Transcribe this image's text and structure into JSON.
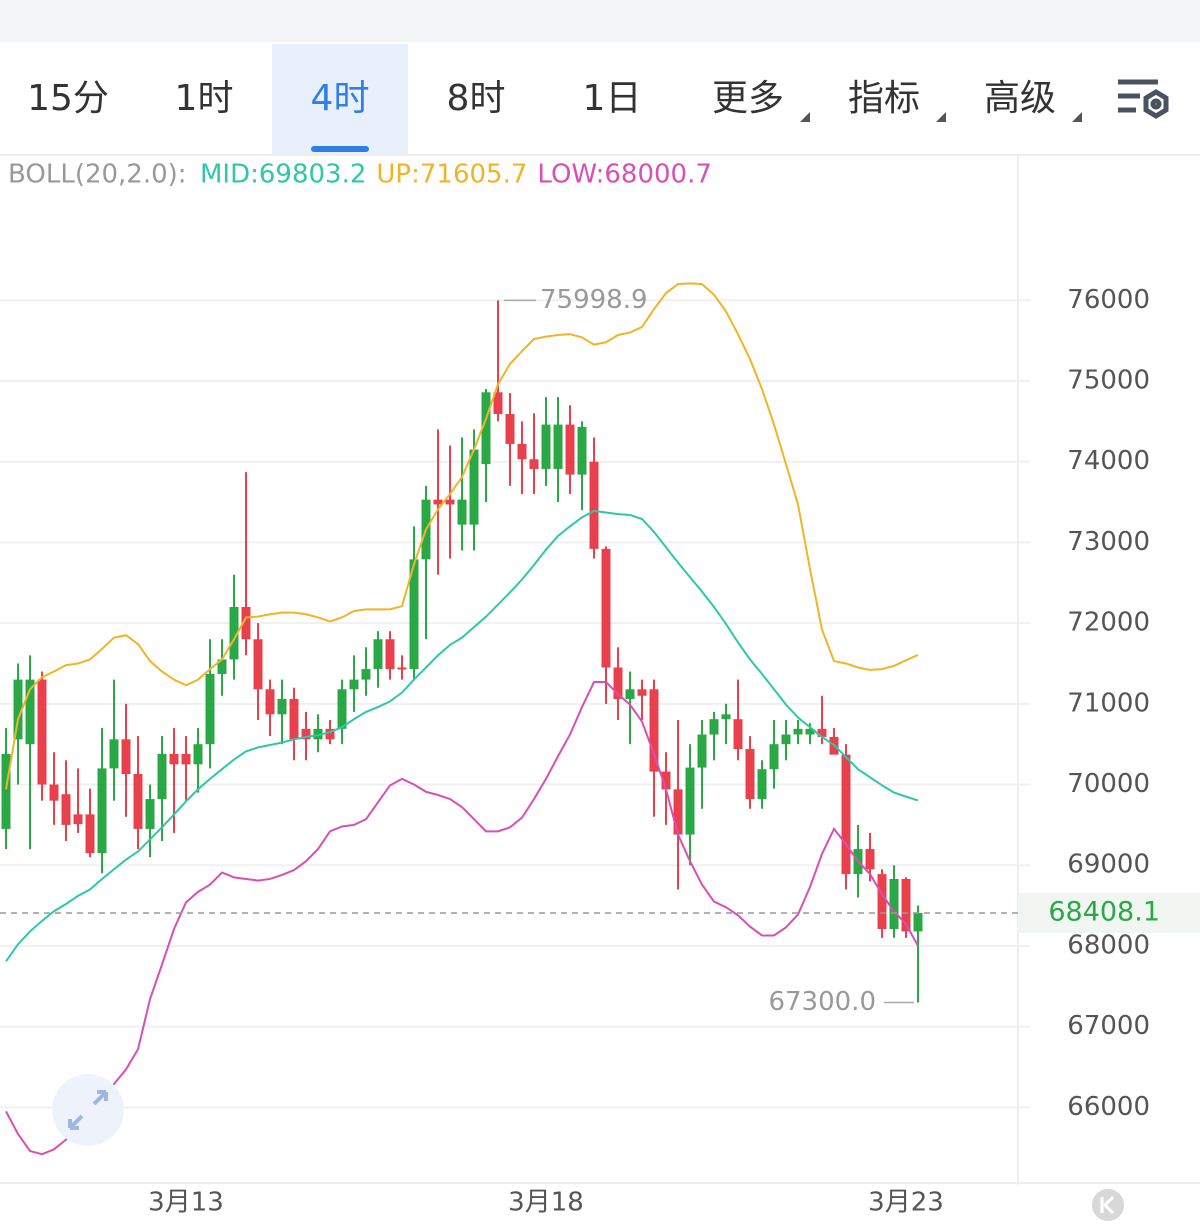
{
  "tabs": [
    {
      "label": "15分"
    },
    {
      "label": "1时"
    },
    {
      "label": "4时"
    },
    {
      "label": "8时"
    },
    {
      "label": "1日"
    },
    {
      "label": "更多",
      "dropdown": true
    },
    {
      "label": "指标",
      "dropdown": true
    },
    {
      "label": "高级",
      "dropdown": true
    }
  ],
  "selected_tab": 2,
  "chart_data": {
    "type": "candlestick",
    "indicator": "BOLL(20,2.0):",
    "up_color": "#2aa845",
    "down_color": "#e8404c",
    "categories": [
      null,
      null,
      null,
      null,
      null,
      null,
      null,
      null,
      null,
      null,
      null,
      null,
      null,
      null,
      null,
      "3月13",
      null,
      null,
      null,
      null,
      null,
      null,
      null,
      null,
      null,
      null,
      null,
      null,
      null,
      null,
      null,
      null,
      null,
      null,
      null,
      null,
      null,
      null,
      null,
      null,
      null,
      null,
      null,
      null,
      null,
      "3月18",
      null,
      null,
      null,
      null,
      null,
      null,
      null,
      null,
      null,
      null,
      null,
      null,
      null,
      null,
      null,
      null,
      null,
      null,
      null,
      null,
      null,
      null,
      null,
      null,
      null,
      null,
      null,
      null,
      null,
      "3月23",
      null
    ],
    "open": [
      69450,
      70560,
      70500,
      71300,
      70000,
      69880,
      69630,
      69630,
      69150,
      70200,
      70560,
      70130,
      69450,
      69820,
      70380,
      70380,
      70250,
      70500,
      71370,
      71550,
      72200,
      71800,
      71180,
      70870,
      71060,
      70690,
      70560,
      70690,
      70690,
      71180,
      71300,
      71430,
      71800,
      71450,
      71430,
      72790,
      73530,
      73530,
      73220,
      73220,
      73970,
      74860,
      74590,
      74220,
      74030,
      73910,
      73910,
      74460,
      73840,
      74000,
      72920,
      71450,
      71060,
      71180,
      71180,
      70160,
      69940,
      69380,
      70210,
      70620,
      70810,
      70810,
      70440,
      69820,
      70190,
      70500,
      70620,
      70620,
      70690,
      70590,
      70370,
      68890,
      69200,
      68890,
      68210,
      68830,
      68180
    ],
    "high": [
      70700,
      71500,
      71600,
      71400,
      70400,
      70300,
      70200,
      69950,
      70700,
      71300,
      71000,
      70600,
      70000,
      70600,
      70700,
      70600,
      70700,
      71800,
      71800,
      72600,
      73870,
      72000,
      71300,
      71300,
      71200,
      70900,
      70870,
      70800,
      71300,
      71600,
      71700,
      71900,
      71900,
      71600,
      73200,
      73700,
      74400,
      74200,
      74300,
      74400,
      74900,
      75998.9,
      74850,
      74500,
      74600,
      74800,
      74800,
      74700,
      74500,
      74300,
      72950,
      71700,
      71400,
      71300,
      71300,
      70400,
      70800,
      70500,
      70800,
      70900,
      71000,
      71300,
      70600,
      70300,
      70800,
      70800,
      70800,
      70760,
      71100,
      70700,
      70500,
      69500,
      69400,
      68950,
      69000,
      68850,
      68500
    ],
    "low": [
      69200,
      70000,
      69200,
      69800,
      69500,
      69300,
      69400,
      69100,
      68900,
      69800,
      69600,
      69200,
      69100,
      69300,
      69400,
      69800,
      69900,
      70200,
      71100,
      71300,
      71600,
      70800,
      70600,
      70500,
      70300,
      70300,
      70400,
      70500,
      70500,
      70900,
      71100,
      71200,
      71300,
      71300,
      71300,
      71800,
      72600,
      72800,
      72900,
      72900,
      73500,
      74500,
      73700,
      73600,
      73600,
      73700,
      73500,
      73600,
      73400,
      72800,
      71000,
      70800,
      70500,
      70800,
      69600,
      69500,
      68700,
      69000,
      69700,
      70300,
      70500,
      70300,
      69700,
      69700,
      69950,
      70300,
      70500,
      70500,
      70500,
      70400,
      68700,
      68600,
      68800,
      68100,
      68100,
      68100,
      67300
    ],
    "close": [
      70380,
      71300,
      71300,
      70000,
      69800,
      69500,
      69510,
      69150,
      70200,
      70560,
      70130,
      69450,
      69820,
      70380,
      70250,
      70250,
      70500,
      71370,
      71550,
      72200,
      71800,
      71180,
      70870,
      71060,
      70560,
      70560,
      70690,
      70560,
      71180,
      71300,
      71430,
      71800,
      71430,
      71430,
      72790,
      73530,
      73470,
      73470,
      73530,
      74150,
      74860,
      74590,
      74220,
      74030,
      73910,
      74460,
      74460,
      73840,
      74430,
      72920,
      71450,
      71060,
      71180,
      71100,
      70160,
      69940,
      69380,
      70210,
      70620,
      70810,
      70870,
      70440,
      69820,
      70190,
      70500,
      70620,
      70690,
      70690,
      70590,
      70370,
      68890,
      69200,
      68950,
      68210,
      68830,
      68180,
      68408.1
    ],
    "series": [
      {
        "name": "MID:69803.2",
        "color": "#2fc7a8",
        "values": [
          67810,
          68020,
          68180,
          68310,
          68430,
          68520,
          68620,
          68700,
          68830,
          68950,
          69070,
          69170,
          69320,
          69470,
          69630,
          69790,
          69940,
          70070,
          70190,
          70310,
          70410,
          70460,
          70490,
          70520,
          70560,
          70590,
          70610,
          70650,
          70710,
          70810,
          70900,
          70960,
          71030,
          71140,
          71300,
          71450,
          71600,
          71730,
          71820,
          71950,
          72080,
          72230,
          72380,
          72540,
          72720,
          72910,
          73080,
          73200,
          73310,
          73390,
          73370,
          73350,
          73340,
          73290,
          73130,
          72940,
          72750,
          72570,
          72390,
          72200,
          71990,
          71760,
          71550,
          71370,
          71180,
          70990,
          70830,
          70710,
          70590,
          70490,
          70340,
          70190,
          70090,
          69990,
          69900,
          69850,
          69803.2
        ]
      },
      {
        "name": "UP:71605.7",
        "color": "#f0b429",
        "values": [
          69940,
          70810,
          71180,
          71330,
          71400,
          71480,
          71500,
          71550,
          71680,
          71820,
          71850,
          71740,
          71530,
          71400,
          71300,
          71230,
          71300,
          71430,
          71550,
          71800,
          72070,
          72080,
          72110,
          72130,
          72130,
          72110,
          72070,
          72020,
          72070,
          72150,
          72170,
          72170,
          72170,
          72210,
          72730,
          73160,
          73410,
          73600,
          73810,
          74150,
          74530,
          74960,
          75210,
          75370,
          75520,
          75550,
          75570,
          75580,
          75540,
          75450,
          75480,
          75570,
          75600,
          75670,
          75890,
          76090,
          76200,
          76210,
          76200,
          76070,
          75860,
          75580,
          75270,
          74900,
          74460,
          73970,
          73470,
          72670,
          71920,
          71530,
          71500,
          71450,
          71420,
          71430,
          71470,
          71540,
          71605.7
        ]
      },
      {
        "name": "LOW:68000.7",
        "color": "#d94fb3",
        "values": [
          65950,
          65670,
          65460,
          65420,
          65480,
          65600,
          65830,
          66000,
          66130,
          66290,
          66470,
          66720,
          67340,
          67770,
          68210,
          68540,
          68670,
          68760,
          68910,
          68850,
          68830,
          68810,
          68830,
          68880,
          68940,
          69050,
          69200,
          69420,
          69480,
          69500,
          69570,
          69780,
          69990,
          70070,
          70000,
          69910,
          69870,
          69820,
          69720,
          69570,
          69420,
          69420,
          69470,
          69590,
          69820,
          70070,
          70350,
          70620,
          70960,
          71270,
          71270,
          71120,
          70990,
          70780,
          70380,
          69940,
          69380,
          69050,
          68760,
          68550,
          68480,
          68380,
          68240,
          68130,
          68130,
          68230,
          68390,
          68730,
          69140,
          69450,
          69260,
          69050,
          68890,
          68640,
          68430,
          68270,
          68000.7
        ]
      }
    ],
    "ylim": [
      65100,
      77800
    ],
    "yticks": [
      66000,
      67000,
      68000,
      69000,
      70000,
      71000,
      72000,
      73000,
      74000,
      75000,
      76000
    ],
    "grid": true,
    "high_annotation": 75998.9,
    "low_annotation": {
      "value": 67300,
      "label": "67300.0"
    },
    "last_price": 68408.1
  }
}
